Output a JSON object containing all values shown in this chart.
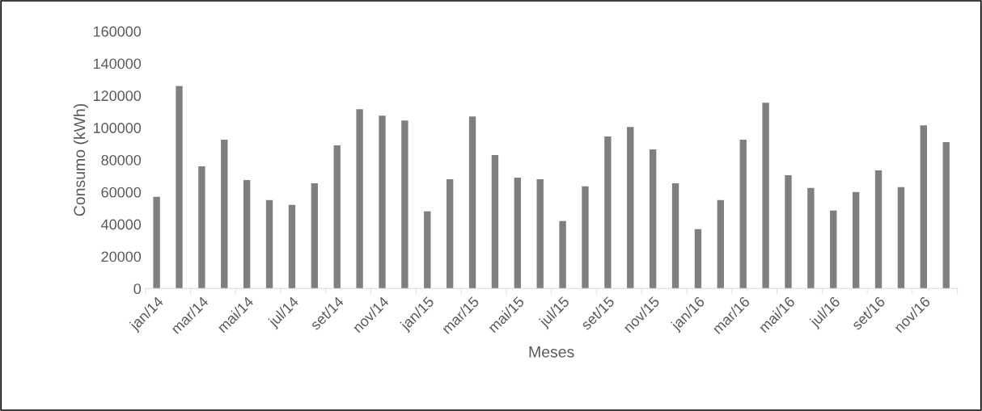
{
  "chart_data": {
    "type": "bar",
    "xlabel": "Meses",
    "ylabel": "Consumo (kWh)",
    "categories": [
      "jan/14",
      null,
      "mar/14",
      null,
      "mai/14",
      null,
      "jul/14",
      null,
      "set/14",
      null,
      "nov/14",
      null,
      "jan/15",
      null,
      "mar/15",
      null,
      "mai/15",
      null,
      "jul/15",
      null,
      "set/15",
      null,
      "nov/15",
      null,
      "jan/16",
      null,
      "mar/16",
      null,
      "mai/16",
      null,
      "jul/16",
      null,
      "set/16",
      null,
      "nov/16",
      null
    ],
    "values": [
      57000,
      126000,
      76000,
      92500,
      67500,
      55000,
      52000,
      65500,
      89000,
      111500,
      107500,
      104500,
      48000,
      68000,
      107000,
      83000,
      69000,
      68000,
      42000,
      63500,
      94500,
      100500,
      86500,
      65500,
      37000,
      55000,
      92500,
      115500,
      70500,
      62500,
      48500,
      60000,
      73500,
      63000,
      101500,
      91000
    ],
    "color": "#7f7f7f",
    "ylim": [
      0,
      160000
    ],
    "yticks": [
      0,
      20000,
      40000,
      60000,
      80000,
      100000,
      120000,
      140000,
      160000
    ],
    "grid": false,
    "legend": false
  }
}
